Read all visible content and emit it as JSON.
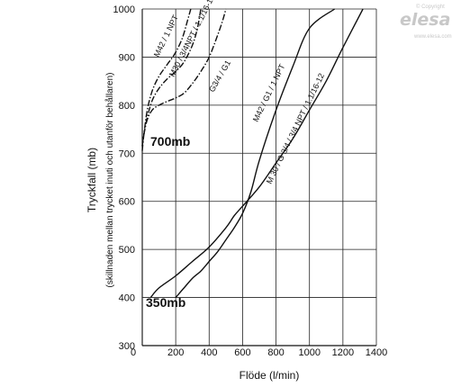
{
  "watermark": {
    "copyright": "© Copyright",
    "logo": "elesa",
    "url": "www.elesa.com"
  },
  "chart_data": {
    "type": "line",
    "xlabel": "Flöde (l/min)",
    "ylabel": "Tryckfall (mb)",
    "ylabel_sub": "(skillnaden mellan trycket inuti och utanför behållaren)",
    "xlim": [
      0,
      1400
    ],
    "ylim": [
      300,
      1000
    ],
    "x_ticks": [
      "0",
      "200",
      "400",
      "600",
      "800",
      "1000",
      "1200",
      "1400"
    ],
    "y_ticks": [
      "300",
      "400",
      "500",
      "600",
      "700",
      "800",
      "900",
      "1000"
    ],
    "annotations": [
      {
        "text": "700mb",
        "x": 20,
        "y": 685
      },
      {
        "text": "350mb",
        "x": 20,
        "y": 375
      }
    ],
    "grid": true,
    "series": [
      {
        "name": "M42 / 1 NPT",
        "style": "dashdot",
        "x": [
          0,
          10,
          30,
          60,
          100,
          150,
          200,
          240,
          270,
          290
        ],
        "y": [
          705,
          740,
          790,
          830,
          860,
          885,
          910,
          940,
          975,
          1000
        ]
      },
      {
        "name": "M30 / 3/4NPT / 1.1/16-12",
        "style": "dashdot",
        "x": [
          0,
          10,
          30,
          60,
          100,
          150,
          200,
          250,
          300,
          330,
          350
        ],
        "y": [
          715,
          740,
          775,
          810,
          835,
          855,
          870,
          890,
          925,
          960,
          1000
        ]
      },
      {
        "name": "G3/4 / G1",
        "style": "dashdot",
        "x": [
          0,
          10,
          30,
          60,
          100,
          150,
          200,
          250,
          300,
          350,
          400,
          450,
          480,
          500
        ],
        "y": [
          715,
          740,
          770,
          790,
          800,
          808,
          815,
          825,
          845,
          870,
          900,
          945,
          975,
          1000
        ]
      },
      {
        "name": "M42 / G1 / 1 NPT",
        "style": "solid",
        "x": [
          200,
          250,
          300,
          350,
          400,
          450,
          500,
          550,
          600,
          650,
          700,
          800,
          900,
          1000,
          1150
        ],
        "y": [
          400,
          420,
          440,
          455,
          475,
          495,
          520,
          545,
          575,
          620,
          685,
          790,
          880,
          960,
          1000
        ]
      },
      {
        "name": "M 30 / G 3/4 / 3/4 NPT / 1.1/16-12",
        "style": "solid",
        "x": [
          50,
          100,
          200,
          300,
          400,
          500,
          550,
          600,
          700,
          800,
          900,
          1000,
          1100,
          1200,
          1320
        ],
        "y": [
          400,
          420,
          445,
          475,
          505,
          545,
          570,
          590,
          630,
          680,
          730,
          790,
          850,
          920,
          1000
        ]
      }
    ]
  }
}
